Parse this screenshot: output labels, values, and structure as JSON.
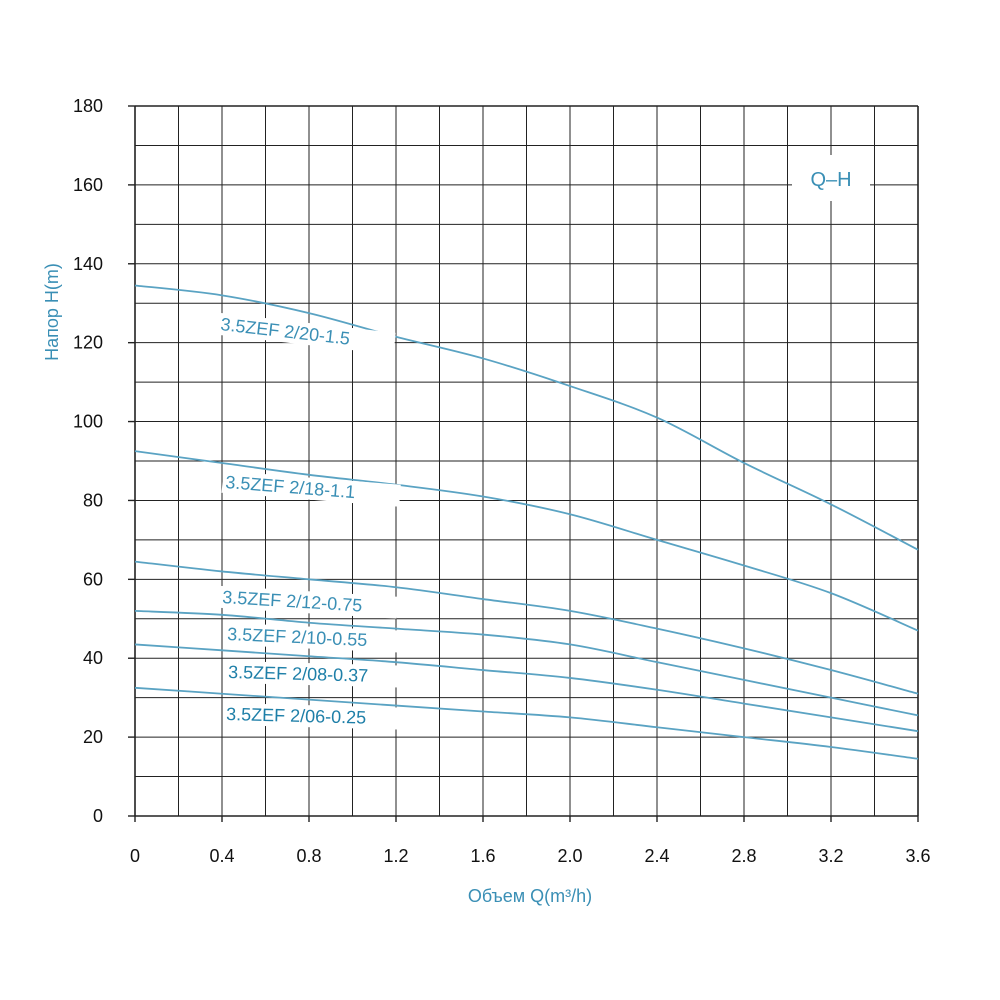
{
  "chart_data": {
    "type": "line",
    "title": "",
    "tag_label": "Q–H",
    "xlabel": "Объем Q(m³/h)",
    "ylabel": "Напор H(m)",
    "xlim": [
      0,
      3.6
    ],
    "ylim": [
      0,
      180
    ],
    "x_ticks": [
      "0",
      "0.4",
      "0.8",
      "1.2",
      "1.6",
      "2.0",
      "2.4",
      "2.8",
      "3.2",
      "3.6"
    ],
    "y_ticks": [
      "0",
      "20",
      "40",
      "60",
      "80",
      "100",
      "120",
      "140",
      "160",
      "180"
    ],
    "grid": true,
    "colors": {
      "curve": "#5aa3c3",
      "label": "#3a8fb5",
      "grid": "#222222",
      "label_dark": "#1e7fa8"
    },
    "series": [
      {
        "name": "3.5ZEF 2/20-1.5",
        "x": [
          0,
          0.4,
          0.8,
          1.2,
          1.6,
          2.0,
          2.4,
          2.8,
          3.2,
          3.6
        ],
        "y": [
          134.5,
          132,
          127.5,
          121.5,
          116,
          109,
          101,
          89.5,
          79,
          67.5
        ]
      },
      {
        "name": "3.5ZEF 2/18-1.1",
        "x": [
          0,
          0.4,
          0.8,
          1.2,
          1.6,
          2.0,
          2.4,
          2.8,
          3.2,
          3.6
        ],
        "y": [
          92.5,
          89.5,
          86.5,
          84,
          81,
          76.5,
          70,
          63.5,
          56.5,
          47
        ]
      },
      {
        "name": "3.5ZEF 2/12-0.75",
        "x": [
          0,
          0.4,
          0.8,
          1.2,
          1.6,
          2.0,
          2.4,
          2.8,
          3.2,
          3.6
        ],
        "y": [
          64.5,
          62,
          60,
          58,
          55,
          52,
          47.5,
          42.5,
          37,
          31
        ]
      },
      {
        "name": "3.5ZEF 2/10-0.55",
        "x": [
          0,
          0.4,
          0.8,
          1.2,
          1.6,
          2.0,
          2.4,
          2.8,
          3.2,
          3.6
        ],
        "y": [
          52,
          51,
          49,
          47.5,
          46,
          43.5,
          39,
          34.5,
          30,
          25.5
        ]
      },
      {
        "name": "3.5ZEF 2/08-0.37",
        "x": [
          0,
          0.4,
          0.8,
          1.2,
          1.6,
          2.0,
          2.4,
          2.8,
          3.2,
          3.6
        ],
        "y": [
          43.5,
          42,
          40.5,
          39,
          37,
          35,
          32,
          28.5,
          25,
          21.5
        ]
      },
      {
        "name": "3.5ZEF 2/06-0.25",
        "x": [
          0,
          0.4,
          0.8,
          1.2,
          1.6,
          2.0,
          2.4,
          2.8,
          3.2,
          3.6
        ],
        "y": [
          32.5,
          31,
          29.5,
          28,
          26.5,
          25,
          22.5,
          20,
          17.5,
          14.5
        ]
      }
    ]
  }
}
